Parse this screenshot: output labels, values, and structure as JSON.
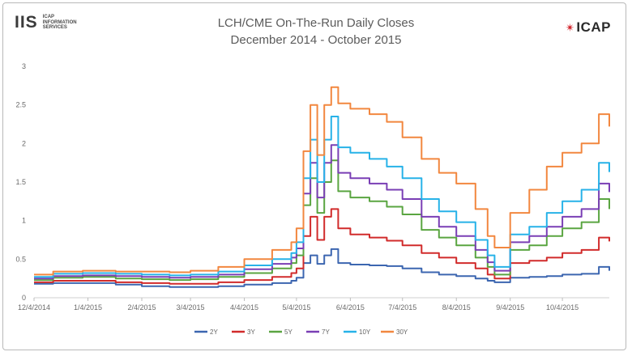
{
  "logos": {
    "left_mark": "IIS",
    "left_sub_lines": [
      "ICAP",
      "INFORMATION",
      "SERVICES"
    ],
    "right_mark": "ICAP",
    "accent_color": "#d2232a"
  },
  "chart_data": {
    "type": "line",
    "title": "LCH/CME On-The-Run Daily Closes",
    "subtitle": "December 2014 - October 2015",
    "xlabel": "",
    "ylabel": "",
    "x_ticks": [
      "12/4/2014",
      "1/4/2015",
      "2/4/2015",
      "3/4/2015",
      "4/4/2015",
      "5/4/2015",
      "6/4/2015",
      "7/4/2015",
      "8/4/2015",
      "9/4/2015",
      "10/4/2015"
    ],
    "y_ticks": [
      "0",
      "0.5",
      "1",
      "1.5",
      "2",
      "2.5",
      "3"
    ],
    "ylim": [
      0,
      3
    ],
    "xlim": [
      "2014-12-04",
      "2015-10-31"
    ],
    "grid": false,
    "legend_position": "bottom",
    "x": [
      "2014-12-04",
      "2014-12-15",
      "2015-01-01",
      "2015-01-20",
      "2015-02-04",
      "2015-02-20",
      "2015-03-04",
      "2015-03-20",
      "2015-04-04",
      "2015-04-20",
      "2015-05-01",
      "2015-05-04",
      "2015-05-08",
      "2015-05-12",
      "2015-05-16",
      "2015-05-20",
      "2015-05-24",
      "2015-05-28",
      "2015-06-04",
      "2015-06-15",
      "2015-06-25",
      "2015-07-04",
      "2015-07-15",
      "2015-07-25",
      "2015-08-04",
      "2015-08-15",
      "2015-08-22",
      "2015-08-26",
      "2015-09-04",
      "2015-09-15",
      "2015-09-25",
      "2015-10-04",
      "2015-10-15",
      "2015-10-25",
      "2015-10-31"
    ],
    "series": [
      {
        "name": "2Y",
        "color": "#3c66b0",
        "values": [
          0.18,
          0.19,
          0.19,
          0.17,
          0.15,
          0.14,
          0.14,
          0.15,
          0.17,
          0.19,
          0.22,
          0.26,
          0.45,
          0.55,
          0.44,
          0.55,
          0.63,
          0.45,
          0.43,
          0.42,
          0.41,
          0.38,
          0.33,
          0.3,
          0.28,
          0.25,
          0.22,
          0.2,
          0.26,
          0.27,
          0.28,
          0.3,
          0.31,
          0.4,
          0.35
        ]
      },
      {
        "name": "3Y",
        "color": "#d12b2b",
        "values": [
          0.2,
          0.22,
          0.22,
          0.2,
          0.19,
          0.18,
          0.18,
          0.2,
          0.23,
          0.27,
          0.32,
          0.38,
          0.8,
          1.05,
          0.75,
          1.05,
          1.15,
          0.9,
          0.82,
          0.78,
          0.74,
          0.68,
          0.58,
          0.52,
          0.45,
          0.38,
          0.3,
          0.25,
          0.45,
          0.48,
          0.52,
          0.58,
          0.62,
          0.78,
          0.73
        ]
      },
      {
        "name": "5Y",
        "color": "#5aa541",
        "values": [
          0.23,
          0.26,
          0.27,
          0.25,
          0.24,
          0.23,
          0.24,
          0.27,
          0.32,
          0.38,
          0.45,
          0.55,
          1.2,
          1.55,
          1.1,
          1.5,
          1.78,
          1.38,
          1.3,
          1.25,
          1.18,
          1.08,
          0.88,
          0.78,
          0.68,
          0.52,
          0.4,
          0.3,
          0.62,
          0.68,
          0.8,
          0.9,
          0.98,
          1.28,
          1.15
        ]
      },
      {
        "name": "7Y",
        "color": "#7a3fb5",
        "values": [
          0.25,
          0.28,
          0.29,
          0.28,
          0.27,
          0.26,
          0.27,
          0.3,
          0.37,
          0.44,
          0.52,
          0.64,
          1.35,
          1.75,
          1.3,
          1.75,
          1.98,
          1.62,
          1.55,
          1.48,
          1.4,
          1.28,
          1.05,
          0.92,
          0.8,
          0.62,
          0.46,
          0.35,
          0.72,
          0.8,
          0.92,
          1.05,
          1.15,
          1.48,
          1.37
        ]
      },
      {
        "name": "10Y",
        "color": "#27b2e8",
        "values": [
          0.27,
          0.31,
          0.32,
          0.31,
          0.3,
          0.29,
          0.3,
          0.34,
          0.42,
          0.5,
          0.58,
          0.72,
          1.55,
          2.05,
          1.5,
          2.05,
          2.35,
          1.95,
          1.88,
          1.8,
          1.7,
          1.55,
          1.28,
          1.12,
          0.98,
          0.75,
          0.55,
          0.4,
          0.82,
          0.92,
          1.1,
          1.25,
          1.4,
          1.75,
          1.63
        ]
      },
      {
        "name": "30Y",
        "color": "#f2873f",
        "values": [
          0.3,
          0.34,
          0.35,
          0.34,
          0.34,
          0.33,
          0.35,
          0.4,
          0.5,
          0.62,
          0.72,
          0.9,
          1.9,
          2.5,
          1.85,
          2.5,
          2.73,
          2.52,
          2.45,
          2.38,
          2.28,
          2.08,
          1.8,
          1.62,
          1.48,
          1.15,
          0.8,
          0.65,
          1.1,
          1.4,
          1.7,
          1.88,
          2.0,
          2.38,
          2.22
        ]
      }
    ]
  }
}
